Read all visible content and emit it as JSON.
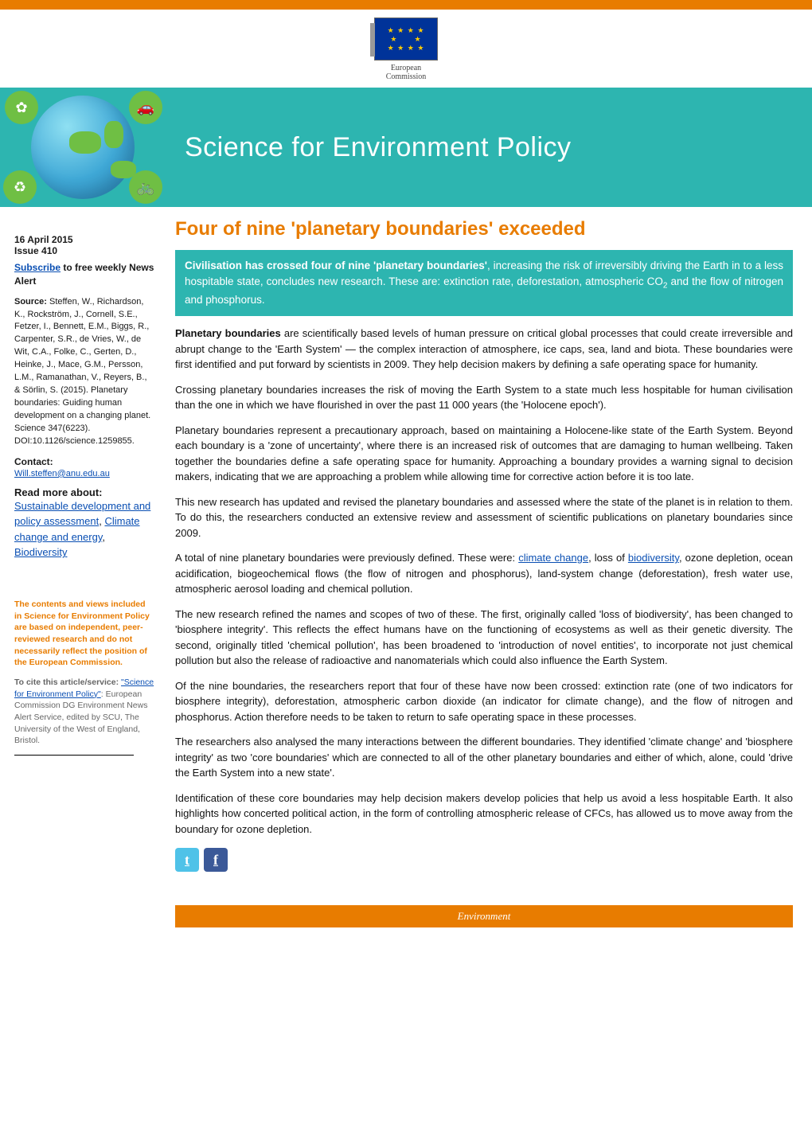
{
  "colors": {
    "accent_orange": "#e87c00",
    "accent_teal": "#2db5b0",
    "link_blue": "#0a4fb3",
    "eu_flag_blue": "#003399",
    "eu_star_gold": "#ffcc00",
    "globe_green": "#6fbf44",
    "body_text": "#111111",
    "muted_grey": "#666666"
  },
  "header": {
    "logo_caption_line1": "European",
    "logo_caption_line2": "Commission"
  },
  "banner": {
    "title": "Science for Environment Policy"
  },
  "article": {
    "title": "Four of nine 'planetary boundaries' exceeded",
    "lead_strong": "Civilisation has crossed four of nine 'planetary boundaries'",
    "lead_rest": ", increasing the risk of irreversibly driving the Earth in to a less hospitable state, concludes new research. These are: extinction rate, deforestation, atmospheric CO",
    "lead_sub": "2",
    "lead_tail": " and the flow of nitrogen and phosphorus.",
    "p1_strong": "Planetary boundaries",
    "p1_rest": " are scientifically based levels of human pressure on critical global processes that could create irreversible and abrupt change to the 'Earth System' — the complex interaction of atmosphere, ice caps, sea, land and biota. These boundaries were first identified and put forward by scientists in 2009. They help decision makers by defining a safe operating space for humanity.",
    "p2": "Crossing planetary boundaries increases the risk of moving the Earth System to a state much less hospitable for human civilisation than the one in which we have flourished in over the past 11 000 years (the 'Holocene epoch').",
    "p3": "Planetary boundaries represent a precautionary approach, based on maintaining a Holocene-like state of the Earth System. Beyond each boundary is a 'zone of uncertainty', where there is an increased risk of outcomes that are damaging to human wellbeing. Taken together the boundaries define a safe operating space for humanity. Approaching a boundary provides a warning signal to decision makers, indicating that we are approaching a problem while allowing time for corrective action before it is too late.",
    "p4": "This new research has updated and revised the planetary boundaries and assessed where the state of the planet is in relation to them. To do this, the researchers conducted an extensive review and assessment of scientific publications on planetary boundaries since 2009.",
    "p5_a": "A total of nine planetary boundaries were previously defined. These were: ",
    "p5_link1": "climate change",
    "p5_b": ", loss of ",
    "p5_link2": "biodiversity",
    "p5_c": ", ozone depletion, ocean acidification, biogeochemical flows (the flow of nitrogen and phosphorus), land-system change (deforestation), fresh water use, atmospheric aerosol loading and chemical pollution.",
    "p6": "The new research refined the names and scopes of two of these. The first, originally called 'loss of biodiversity', has been changed to 'biosphere integrity'. This reflects the effect humans have on the functioning of ecosystems as well as their genetic diversity. The second, originally titled 'chemical pollution', has been broadened to 'introduction of novel entities', to incorporate not just chemical pollution but also the release of radioactive and nanomaterials which could also influence the Earth System.",
    "p7": "Of the nine boundaries, the researchers report that four of these have now been crossed: extinction rate (one of two indicators for biosphere integrity), deforestation, atmospheric carbon dioxide (an indicator for climate change), and the flow of nitrogen and phosphorus. Action therefore needs to be taken to return to safe operating space in these processes.",
    "p8": "The researchers also analysed the many interactions between the different boundaries. They identified 'climate change' and 'biosphere integrity' as two 'core boundaries' which are connected to all of the other planetary boundaries and either of which, alone, could 'drive the Earth System into a new state'.",
    "p9": "Identification of these core boundaries may help decision makers develop policies that help us avoid a less hospitable Earth. It also highlights how concerted political action, in the form of controlling atmospheric release of CFCs, has allowed us to move away from the boundary for ozone depletion."
  },
  "sidebar": {
    "date": "16 April 2015",
    "issue": "Issue 410",
    "subscribe_link": "Subscribe",
    "subscribe_rest": " to free weekly News Alert",
    "source_label": "Source:",
    "source_text": " Steffen, W., Richardson, K., Rockström, J., Cornell, S.E., Fetzer, I., Bennett, E.M., Biggs, R., Carpenter, S.R., de Vries, W., de Wit, C.A., Folke, C., Gerten, D., Heinke, J., Mace, G.M., Persson, L.M., Ramanathan, V., Reyers, B., & Sörlin, S. (2015). Planetary boundaries: Guiding human development on a changing planet. Science 347(6223). DOI:10.1126/science.1259855.",
    "contact_label": "Contact:",
    "contact_email": "Will.steffen@anu.edu.au",
    "readmore_head": "Read more about:",
    "readmore_link1": "Sustainable development and policy assessment",
    "readmore_sep": ", ",
    "readmore_link2": "Climate change and energy",
    "readmore_sep2": ", ",
    "readmore_link3": "Biodiversity",
    "disclaimer": "The contents and views included in Science for Environment Policy are based on independent, peer-reviewed research and do not necessarily reflect the position of the European Commission.",
    "cite_lead": "To cite this article/service: ",
    "cite_link": "\"Science for Environment Policy\"",
    "cite_rest": ": European Commission DG Environment News Alert Service, edited by SCU, The University of the West of England, Bristol."
  },
  "social": {
    "twitter_label": "t",
    "facebook_label": "f"
  },
  "footer": {
    "label": "Environment"
  }
}
